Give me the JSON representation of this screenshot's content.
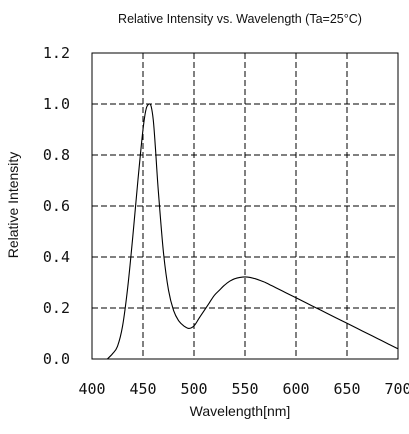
{
  "chart_data": {
    "type": "line",
    "title": "Relative Intensity vs. Wavelength (Ta=25°C)",
    "xlabel": "Wavelength[nm]",
    "ylabel": "Relative Intensity",
    "xlim": [
      400,
      700
    ],
    "ylim": [
      0.0,
      1.2
    ],
    "xticks": [
      "400",
      "450",
      "500",
      "550",
      "600",
      "650",
      "700"
    ],
    "yticks": [
      "0.0",
      "0.2",
      "0.4",
      "0.6",
      "0.8",
      "1.0",
      "1.2"
    ],
    "grid": true,
    "series": [
      {
        "x": [
          415,
          420,
          425,
          430,
          435,
          440,
          445,
          450,
          453,
          456,
          458,
          460,
          462,
          465,
          470,
          475,
          480,
          485,
          490,
          495,
          500,
          505,
          510,
          515,
          520,
          525,
          530,
          535,
          540,
          545,
          550,
          555,
          560,
          565,
          570,
          575,
          580,
          590,
          600,
          610,
          620,
          630,
          640,
          650,
          660,
          670,
          680,
          690,
          700
        ],
        "y": [
          0.0,
          0.02,
          0.05,
          0.13,
          0.28,
          0.48,
          0.7,
          0.9,
          0.98,
          1.0,
          0.99,
          0.94,
          0.84,
          0.66,
          0.42,
          0.27,
          0.19,
          0.15,
          0.13,
          0.12,
          0.13,
          0.16,
          0.19,
          0.22,
          0.25,
          0.27,
          0.29,
          0.305,
          0.315,
          0.32,
          0.322,
          0.32,
          0.315,
          0.308,
          0.3,
          0.29,
          0.28,
          0.26,
          0.24,
          0.22,
          0.2,
          0.18,
          0.16,
          0.14,
          0.12,
          0.1,
          0.08,
          0.06,
          0.04
        ]
      }
    ]
  }
}
